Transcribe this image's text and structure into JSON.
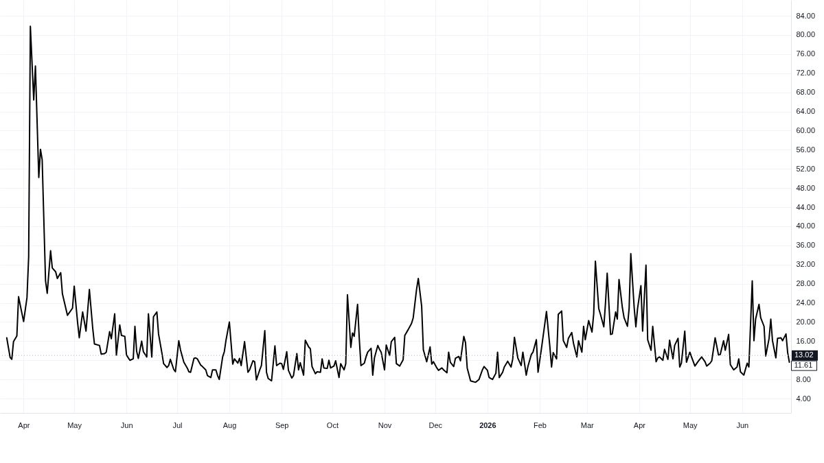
{
  "chart_data": {
    "type": "line",
    "x": [
      "2025-03-22",
      "2025-03-24",
      "2025-03-25",
      "2025-03-26",
      "2025-03-28",
      "2025-03-29",
      "2025-03-31",
      "2025-04-01",
      "2025-04-03",
      "2025-04-04",
      "2025-04-05",
      "2025-04-07",
      "2025-04-08",
      "2025-04-10",
      "2025-04-11",
      "2025-04-12",
      "2025-04-14",
      "2025-04-15",
      "2025-04-17",
      "2025-04-18",
      "2025-04-20",
      "2025-04-21",
      "2025-04-23",
      "2025-04-24",
      "2025-04-27",
      "2025-04-30",
      "2025-05-01",
      "2025-05-03",
      "2025-05-04",
      "2025-05-06",
      "2025-05-08",
      "2025-05-10",
      "2025-05-12",
      "2025-05-13",
      "2025-05-16",
      "2025-05-17",
      "2025-05-19",
      "2025-05-20",
      "2025-05-22",
      "2025-05-23",
      "2025-05-25",
      "2025-05-26",
      "2025-05-28",
      "2025-05-29",
      "2025-05-31",
      "2025-06-01",
      "2025-06-03",
      "2025-06-05",
      "2025-06-06",
      "2025-06-07",
      "2025-06-08",
      "2025-06-10",
      "2025-06-11",
      "2025-06-13",
      "2025-06-14",
      "2025-06-16",
      "2025-06-17",
      "2025-06-19",
      "2025-06-20",
      "2025-06-22",
      "2025-06-23",
      "2025-06-25",
      "2025-06-26",
      "2025-06-27",
      "2025-06-29",
      "2025-06-30",
      "2025-07-02",
      "2025-07-03",
      "2025-07-05",
      "2025-07-07",
      "2025-07-08",
      "2025-07-09",
      "2025-07-11",
      "2025-07-12",
      "2025-07-13",
      "2025-07-15",
      "2025-07-16",
      "2025-07-18",
      "2025-07-19",
      "2025-07-21",
      "2025-07-22",
      "2025-07-24",
      "2025-07-25",
      "2025-07-26",
      "2025-07-28",
      "2025-07-29",
      "2025-07-30",
      "2025-08-01",
      "2025-08-03",
      "2025-08-04",
      "2025-08-06",
      "2025-08-07",
      "2025-08-08",
      "2025-08-10",
      "2025-08-12",
      "2025-08-13",
      "2025-08-15",
      "2025-08-16",
      "2025-08-17",
      "2025-08-19",
      "2025-08-20",
      "2025-08-22",
      "2025-08-23",
      "2025-08-24",
      "2025-08-26",
      "2025-08-28",
      "2025-08-29",
      "2025-08-31",
      "2025-09-01",
      "2025-09-02",
      "2025-09-04",
      "2025-09-05",
      "2025-09-07",
      "2025-09-08",
      "2025-09-10",
      "2025-09-11",
      "2025-09-12",
      "2025-09-14",
      "2025-09-15",
      "2025-09-17",
      "2025-09-18",
      "2025-09-19",
      "2025-09-21",
      "2025-09-22",
      "2025-09-24",
      "2025-09-25",
      "2025-09-26",
      "2025-09-28",
      "2025-09-29",
      "2025-09-30",
      "2025-10-02",
      "2025-10-03",
      "2025-10-05",
      "2025-10-06",
      "2025-10-08",
      "2025-10-09",
      "2025-10-10",
      "2025-10-12",
      "2025-10-13",
      "2025-10-14",
      "2025-10-16",
      "2025-10-17",
      "2025-10-18",
      "2025-10-20",
      "2025-10-21",
      "2025-10-22",
      "2025-10-24",
      "2025-10-25",
      "2025-10-26",
      "2025-10-28",
      "2025-10-29",
      "2025-10-30",
      "2025-11-01",
      "2025-11-02",
      "2025-11-04",
      "2025-11-05",
      "2025-11-07",
      "2025-11-08",
      "2025-11-10",
      "2025-11-12",
      "2025-11-13",
      "2025-11-15",
      "2025-11-17",
      "2025-11-18",
      "2025-11-20",
      "2025-11-21",
      "2025-11-23",
      "2025-11-24",
      "2025-11-26",
      "2025-11-28",
      "2025-11-29",
      "2025-11-30",
      "2025-12-02",
      "2025-12-03",
      "2025-12-05",
      "2025-12-06",
      "2025-12-08",
      "2025-12-09",
      "2025-12-10",
      "2025-12-12",
      "2025-12-13",
      "2025-12-15",
      "2025-12-16",
      "2025-12-18",
      "2025-12-19",
      "2025-12-20",
      "2025-12-22",
      "2025-12-23",
      "2025-12-25",
      "2025-12-27",
      "2025-12-29",
      "2025-12-30",
      "2026-01-01",
      "2026-01-02",
      "2026-01-04",
      "2026-01-06",
      "2026-01-07",
      "2026-01-08",
      "2026-01-10",
      "2026-01-11",
      "2026-01-13",
      "2026-01-15",
      "2026-01-16",
      "2026-01-17",
      "2026-01-19",
      "2026-01-21",
      "2026-01-22",
      "2026-01-24",
      "2026-01-25",
      "2026-01-27",
      "2026-01-28",
      "2026-01-30",
      "2026-01-31",
      "2026-02-02",
      "2026-02-05",
      "2026-02-07",
      "2026-02-08",
      "2026-02-09",
      "2026-02-11",
      "2026-02-12",
      "2026-02-14",
      "2026-02-15",
      "2026-02-17",
      "2026-02-18",
      "2026-02-20",
      "2026-02-21",
      "2026-02-23",
      "2026-02-24",
      "2026-02-26",
      "2026-02-27",
      "2026-02-28",
      "2026-03-02",
      "2026-03-04",
      "2026-03-05",
      "2026-03-06",
      "2026-03-08",
      "2026-03-09",
      "2026-03-11",
      "2026-03-12",
      "2026-03-13",
      "2026-03-15",
      "2026-03-16",
      "2026-03-18",
      "2026-03-19",
      "2026-03-20",
      "2026-03-22",
      "2026-03-23",
      "2026-03-25",
      "2026-03-26",
      "2026-03-27",
      "2026-03-29",
      "2026-03-30",
      "2026-03-31",
      "2026-04-02",
      "2026-04-03",
      "2026-04-05",
      "2026-04-06",
      "2026-04-08",
      "2026-04-09",
      "2026-04-11",
      "2026-04-12",
      "2026-04-13",
      "2026-04-15",
      "2026-04-16",
      "2026-04-18",
      "2026-04-19",
      "2026-04-21",
      "2026-04-22",
      "2026-04-24",
      "2026-04-25",
      "2026-04-26",
      "2026-04-28",
      "2026-04-29",
      "2026-05-01",
      "2026-05-02",
      "2026-05-04",
      "2026-05-06",
      "2026-05-08",
      "2026-05-10",
      "2026-05-11",
      "2026-05-13",
      "2026-05-14",
      "2026-05-16",
      "2026-05-18",
      "2026-05-19",
      "2026-05-21",
      "2026-05-22",
      "2026-05-24",
      "2026-05-25",
      "2026-05-27",
      "2026-05-29",
      "2026-05-30",
      "2026-05-31",
      "2026-06-02",
      "2026-06-04",
      "2026-06-05",
      "2026-06-07",
      "2026-06-08",
      "2026-06-09",
      "2026-06-11",
      "2026-06-12",
      "2026-06-14",
      "2026-06-15",
      "2026-06-17",
      "2026-06-18",
      "2026-06-19",
      "2026-06-21",
      "2026-06-22",
      "2026-06-24",
      "2026-06-25",
      "2026-06-27",
      "2026-06-28",
      "2026-06-29"
    ],
    "series": [
      {
        "color": "#000000",
        "values": [
          16.7,
          12.6,
          12.2,
          15.9,
          17.1,
          25.3,
          21.8,
          20.1,
          25.1,
          33.7,
          81.8,
          66.4,
          73.5,
          50.2,
          56.1,
          53.9,
          28.6,
          26.0,
          34.9,
          31.3,
          30.5,
          29.1,
          30.3,
          25.9,
          21.4,
          22.9,
          27.5,
          19.9,
          16.7,
          22.1,
          18.1,
          26.8,
          18.6,
          15.4,
          15.1,
          13.3,
          13.4,
          13.7,
          18.0,
          16.5,
          21.7,
          13.1,
          19.4,
          17.2,
          17.0,
          13.1,
          12.0,
          12.3,
          19.1,
          13.9,
          12.4,
          16.0,
          13.8,
          12.7,
          21.7,
          12.7,
          21.1,
          22.1,
          17.5,
          13.5,
          11.3,
          10.5,
          10.9,
          12.2,
          10.1,
          9.6,
          16.1,
          14.2,
          11.6,
          10.4,
          9.6,
          9.5,
          12.4,
          12.5,
          12.3,
          11.0,
          10.7,
          10.0,
          8.8,
          8.4,
          10.0,
          10.0,
          8.8,
          8.0,
          12.7,
          13.8,
          16.2,
          20.0,
          11.2,
          12.3,
          11.4,
          12.4,
          10.9,
          15.9,
          9.5,
          10.0,
          11.9,
          11.7,
          7.9,
          10.0,
          10.9,
          18.2,
          9.5,
          8.2,
          7.7,
          15.0,
          10.9,
          11.4,
          11.3,
          10.1,
          13.8,
          9.9,
          8.3,
          8.8,
          13.4,
          10.0,
          11.5,
          8.9,
          16.2,
          14.8,
          14.4,
          10.7,
          9.2,
          9.6,
          9.5,
          12.3,
          10.4,
          10.3,
          12.0,
          10.4,
          10.8,
          11.9,
          8.4,
          11.3,
          10.0,
          11.3,
          25.7,
          14.7,
          17.7,
          17.0,
          23.7,
          16.6,
          10.9,
          11.4,
          12.7,
          13.7,
          14.5,
          8.9,
          12.5,
          15.1,
          14.3,
          13.7,
          10.0,
          15.2,
          13.0,
          15.9,
          16.8,
          11.3,
          10.8,
          12.1,
          17.2,
          18.4,
          19.7,
          20.9,
          26.9,
          29.1,
          23.3,
          14.2,
          11.7,
          14.8,
          11.2,
          11.7,
          10.4,
          9.9,
          10.4,
          10.0,
          9.4,
          13.7,
          11.6,
          10.7,
          12.4,
          12.8,
          11.9,
          17.0,
          15.7,
          10.4,
          7.7,
          7.6,
          7.4,
          8.0,
          10.0,
          10.7,
          9.9,
          8.4,
          8.0,
          9.3,
          13.7,
          8.4,
          9.5,
          10.6,
          11.8,
          10.6,
          12.3,
          16.8,
          12.5,
          10.9,
          13.7,
          8.9,
          10.7,
          13.2,
          13.7,
          16.3,
          9.5,
          14.4,
          22.2,
          14.9,
          10.6,
          13.6,
          12.3,
          21.6,
          22.3,
          16.1,
          14.7,
          16.6,
          17.8,
          15.6,
          12.7,
          16.1,
          13.7,
          19.1,
          16.3,
          20.3,
          17.9,
          21.7,
          32.7,
          22.8,
          21.6,
          19.0,
          24.0,
          30.2,
          17.4,
          17.5,
          22.1,
          20.6,
          28.9,
          23.0,
          20.9,
          19.1,
          22.8,
          34.3,
          23.0,
          19.0,
          22.8,
          27.6,
          18.1,
          31.9,
          16.3,
          14.1,
          19.1,
          11.7,
          12.5,
          12.7,
          12.0,
          14.3,
          12.2,
          16.2,
          12.3,
          15.1,
          16.6,
          10.6,
          11.4,
          18.1,
          11.6,
          13.7,
          12.7,
          10.8,
          11.8,
          12.7,
          11.7,
          10.8,
          11.4,
          11.9,
          16.7,
          13.1,
          13.2,
          16.1,
          14.1,
          17.4,
          11.1,
          10.0,
          10.6,
          12.3,
          9.6,
          8.9,
          11.4,
          10.6,
          28.6,
          16.1,
          20.6,
          23.7,
          20.9,
          19.1,
          12.9,
          16.6,
          20.6,
          16.1,
          12.5,
          16.6,
          16.7,
          16.1,
          17.5,
          13.6,
          11.61
        ]
      }
    ],
    "xlim": [
      "2025-03-18",
      "2026-06-30"
    ],
    "xticks": [
      {
        "value": "2025-04-01",
        "label": "Apr"
      },
      {
        "value": "2025-05-01",
        "label": "May"
      },
      {
        "value": "2025-06-01",
        "label": "Jun"
      },
      {
        "value": "2025-07-01",
        "label": "Jul"
      },
      {
        "value": "2025-08-01",
        "label": "Aug"
      },
      {
        "value": "2025-09-01",
        "label": "Sep"
      },
      {
        "value": "2025-10-01",
        "label": "Oct"
      },
      {
        "value": "2025-11-01",
        "label": "Nov"
      },
      {
        "value": "2025-12-01",
        "label": "Dec"
      },
      {
        "value": "2026-01-01",
        "label": "2026"
      },
      {
        "value": "2026-02-01",
        "label": "Feb"
      },
      {
        "value": "2026-03-01",
        "label": "Mar"
      },
      {
        "value": "2026-04-01",
        "label": "Apr"
      },
      {
        "value": "2026-05-01",
        "label": "May"
      },
      {
        "value": "2026-06-01",
        "label": "Jun"
      }
    ],
    "ylim": [
      1,
      87.3
    ],
    "yticks": [
      {
        "value": 4,
        "label": "4.00"
      },
      {
        "value": 8,
        "label": "8.00"
      },
      {
        "value": 12,
        "label": null
      },
      {
        "value": 16,
        "label": "16.00"
      },
      {
        "value": 20,
        "label": "20.00"
      },
      {
        "value": 24,
        "label": "24.00"
      },
      {
        "value": 28,
        "label": "28.00"
      },
      {
        "value": 32,
        "label": "32.00"
      },
      {
        "value": 36,
        "label": "36.00"
      },
      {
        "value": 40,
        "label": "40.00"
      },
      {
        "value": 44,
        "label": "44.00"
      },
      {
        "value": 48,
        "label": "48.00"
      },
      {
        "value": 52,
        "label": "52.00"
      },
      {
        "value": 56,
        "label": "56.00"
      },
      {
        "value": 60,
        "label": "60.00"
      },
      {
        "value": 64,
        "label": "64.00"
      },
      {
        "value": 68,
        "label": "68.00"
      },
      {
        "value": 72,
        "label": "72.00"
      },
      {
        "value": 76,
        "label": "76.00"
      },
      {
        "value": 80,
        "label": "80.00"
      },
      {
        "value": 84,
        "label": "84.00"
      }
    ],
    "grid": true,
    "line_style": "solid",
    "ref_lines": [
      {
        "axis": "y",
        "value": 13.02,
        "label": "13.02",
        "color": "#b2b5be",
        "line_style": "dotted"
      }
    ],
    "annotations": [
      {
        "text": "11.61",
        "x": "2026-06-29",
        "y": 11.61
      }
    ]
  }
}
